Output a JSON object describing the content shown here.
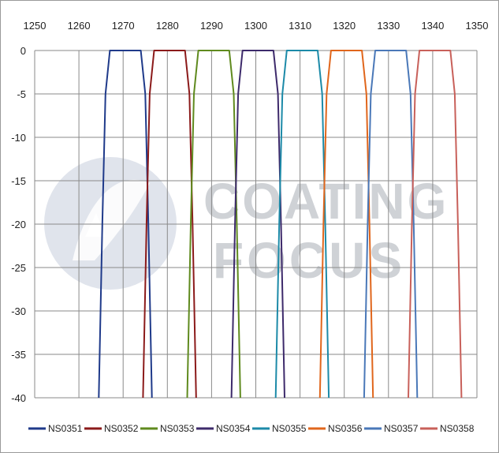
{
  "chart_data": {
    "type": "line",
    "title": "",
    "xlabel": "",
    "ylabel": "",
    "x_ticks": [
      1250,
      1260,
      1270,
      1280,
      1290,
      1300,
      1310,
      1320,
      1330,
      1340,
      1350
    ],
    "y_ticks": [
      0,
      -5,
      -10,
      -15,
      -20,
      -25,
      -30,
      -35,
      -40
    ],
    "xlim": [
      1250,
      1350
    ],
    "ylim": [
      -40,
      0
    ],
    "x_axis_position": "top",
    "grid": true,
    "legend_position": "bottom",
    "series": [
      {
        "name": "NS0351",
        "color": "#1f3a8a",
        "x": [
          1264.5,
          1265.3,
          1266.0,
          1267.0,
          1274.0,
          1275.0,
          1275.7,
          1276.5
        ],
        "y": [
          -40,
          -20,
          -5,
          0,
          0,
          -5,
          -20,
          -40
        ]
      },
      {
        "name": "NS0352",
        "color": "#8b1a1a",
        "x": [
          1274.5,
          1275.3,
          1276.0,
          1277.0,
          1284.0,
          1285.0,
          1285.7,
          1286.5
        ],
        "y": [
          -40,
          -20,
          -5,
          0,
          0,
          -5,
          -20,
          -40
        ]
      },
      {
        "name": "NS0353",
        "color": "#5f8a1e",
        "x": [
          1284.5,
          1285.3,
          1286.0,
          1287.0,
          1294.0,
          1295.0,
          1295.7,
          1296.5
        ],
        "y": [
          -40,
          -20,
          -5,
          0,
          0,
          -5,
          -20,
          -40
        ]
      },
      {
        "name": "NS0354",
        "color": "#3d2a6b",
        "x": [
          1294.5,
          1295.3,
          1296.0,
          1297.0,
          1304.0,
          1305.0,
          1305.7,
          1306.5
        ],
        "y": [
          -40,
          -20,
          -5,
          0,
          0,
          -5,
          -20,
          -40
        ]
      },
      {
        "name": "NS0355",
        "color": "#1c8aa8",
        "x": [
          1304.5,
          1305.3,
          1306.0,
          1307.0,
          1314.0,
          1315.0,
          1315.7,
          1316.5
        ],
        "y": [
          -40,
          -20,
          -5,
          0,
          0,
          -5,
          -20,
          -40
        ]
      },
      {
        "name": "NS0356",
        "color": "#e0661c",
        "x": [
          1314.5,
          1315.3,
          1316.0,
          1317.0,
          1324.0,
          1325.0,
          1325.7,
          1326.5
        ],
        "y": [
          -40,
          -20,
          -5,
          0,
          0,
          -5,
          -20,
          -40
        ]
      },
      {
        "name": "NS0357",
        "color": "#4a78b8",
        "x": [
          1324.5,
          1325.3,
          1326.0,
          1327.0,
          1334.0,
          1335.0,
          1335.7,
          1336.5
        ],
        "y": [
          -40,
          -20,
          -5,
          0,
          0,
          -5,
          -20,
          -40
        ]
      },
      {
        "name": "NS0358",
        "color": "#c8605a",
        "x": [
          1334.5,
          1335.3,
          1336.0,
          1337.0,
          1344.0,
          1345.0,
          1345.7,
          1346.5
        ],
        "y": [
          -40,
          -20,
          -5,
          0,
          0,
          -5,
          -20,
          -40
        ]
      }
    ],
    "watermark": {
      "line1": "COATING",
      "line2": "FOCUS"
    }
  }
}
